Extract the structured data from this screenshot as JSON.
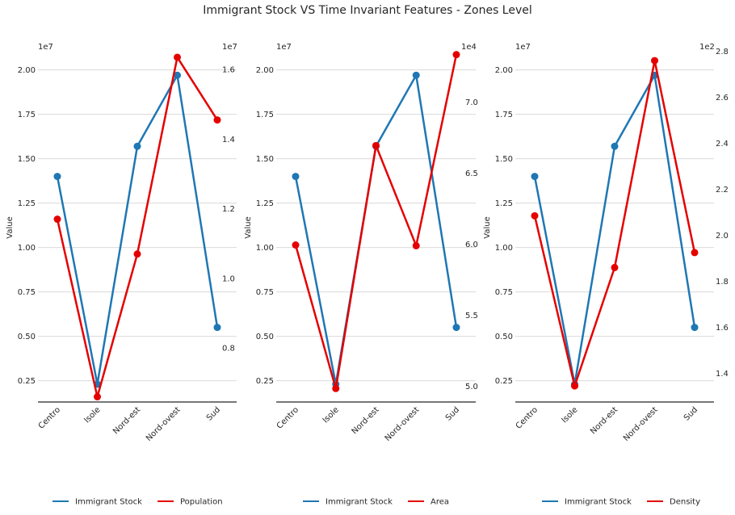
{
  "suptitle": "Immigrant Stock VS Time Invariant Features - Zones Level",
  "colors": {
    "immigrant": "#1f77b4",
    "feature": "#e50000",
    "grid": "#d9d9d9",
    "spine": "#262626"
  },
  "chart_data": [
    {
      "type": "line",
      "categories": [
        "Centro",
        "Isole",
        "Nord-est",
        "Nord-ovest",
        "Sud"
      ],
      "ylabel": "Value",
      "left_axis": {
        "offset_text": "1e7",
        "ylim": [
          0.13,
          2.13
        ],
        "ticks": [
          "0.25",
          "0.50",
          "0.75",
          "1.00",
          "1.25",
          "1.50",
          "1.75",
          "2.00"
        ]
      },
      "right_axis": {
        "offset_text": "1e7",
        "ylim": [
          0.645,
          1.665
        ],
        "ticks": [
          "0.8",
          "1.0",
          "1.2",
          "1.4",
          "1.6"
        ]
      },
      "series": [
        {
          "name": "Immigrant Stock",
          "axis": "left",
          "values": [
            1.4,
            0.23,
            1.57,
            1.97,
            0.55
          ]
        },
        {
          "name": "Population",
          "axis": "right",
          "values": [
            1.17,
            0.66,
            1.07,
            1.635,
            1.455
          ]
        }
      ]
    },
    {
      "type": "line",
      "categories": [
        "Centro",
        "Isole",
        "Nord-est",
        "Nord-ovest",
        "Sud"
      ],
      "ylabel": "Value",
      "left_axis": {
        "offset_text": "1e7",
        "ylim": [
          0.13,
          2.13
        ],
        "ticks": [
          "0.25",
          "0.50",
          "0.75",
          "1.00",
          "1.25",
          "1.50",
          "1.75",
          "2.00"
        ]
      },
      "right_axis": {
        "offset_text": "1e4",
        "ylim": [
          4.89,
          7.39
        ],
        "ticks": [
          "5.0",
          "5.5",
          "6.0",
          "6.5",
          "7.0"
        ]
      },
      "series": [
        {
          "name": "Immigrant Stock",
          "axis": "left",
          "values": [
            1.4,
            0.23,
            1.57,
            1.97,
            0.55
          ]
        },
        {
          "name": "Area",
          "axis": "right",
          "values": [
            5.995,
            4.985,
            6.695,
            5.99,
            7.335
          ]
        }
      ]
    },
    {
      "type": "line",
      "categories": [
        "Centro",
        "Isole",
        "Nord-est",
        "Nord-ovest",
        "Sud"
      ],
      "ylabel": "Value",
      "left_axis": {
        "offset_text": "1e7",
        "ylim": [
          0.13,
          2.13
        ],
        "ticks": [
          "0.25",
          "0.50",
          "0.75",
          "1.00",
          "1.25",
          "1.50",
          "1.75",
          "2.00"
        ]
      },
      "right_axis": {
        "offset_text": "1e2",
        "ylim": [
          1.275,
          2.82
        ],
        "ticks": [
          "1.4",
          "1.6",
          "1.8",
          "2.0",
          "2.2",
          "2.4",
          "2.6",
          "2.8"
        ]
      },
      "series": [
        {
          "name": "Immigrant Stock",
          "axis": "left",
          "values": [
            1.4,
            0.23,
            1.57,
            1.97,
            0.55
          ]
        },
        {
          "name": "Density",
          "axis": "right",
          "values": [
            2.085,
            1.345,
            1.86,
            2.76,
            1.925
          ]
        }
      ]
    }
  ]
}
